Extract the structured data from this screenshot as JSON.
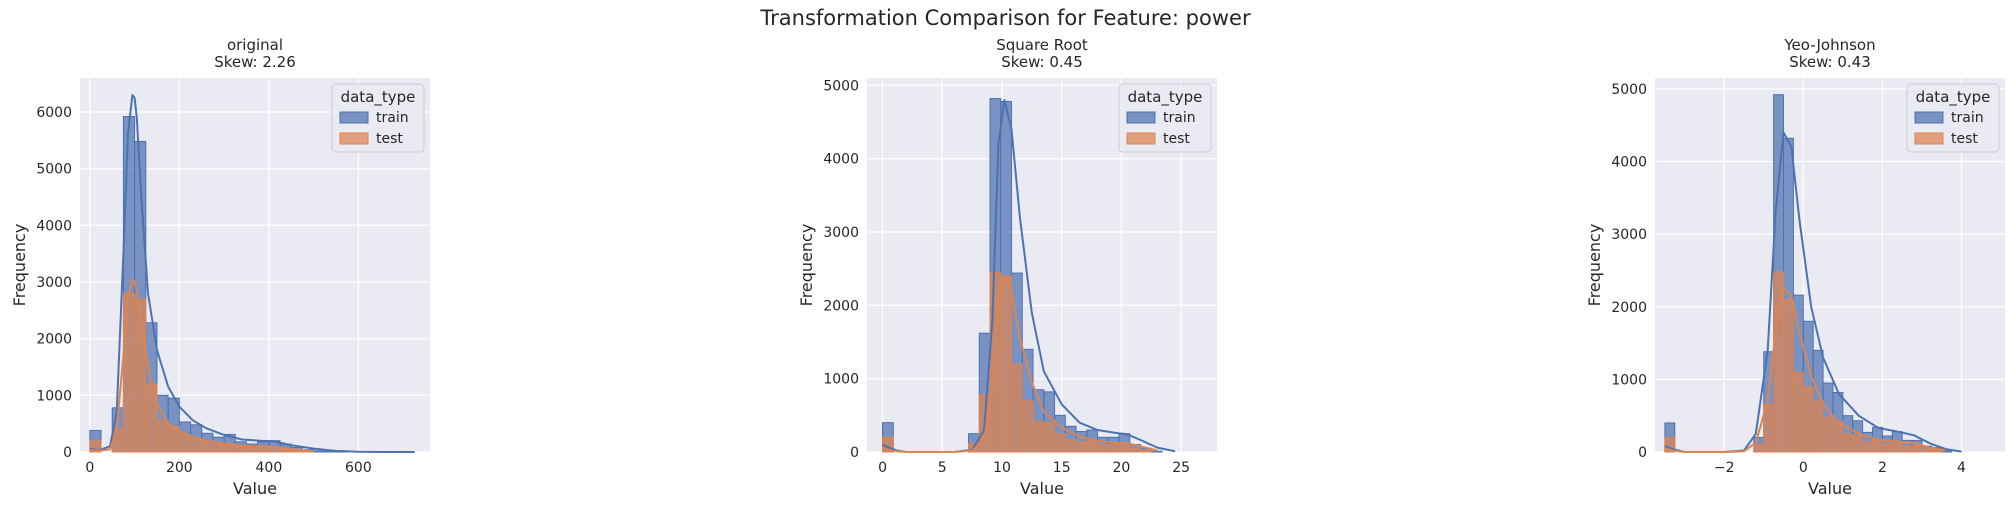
{
  "figure": {
    "suptitle": "Transformation Comparison for Feature: power",
    "legend_title": "data_type",
    "colors": {
      "train": "#4c72b0",
      "test": "#dd8452",
      "background": "#eaeaf2",
      "grid": "#ffffff"
    }
  },
  "chart_data": [
    {
      "type": "histogram",
      "title_line1": "original",
      "title_line2": "Skew: 2.26",
      "xlabel": "Value",
      "ylabel": "Frequency",
      "xlim": [
        -22,
        760
      ],
      "ylim": [
        0,
        6600
      ],
      "xticks": [
        0,
        200,
        400,
        600
      ],
      "yticks": [
        0,
        1000,
        2000,
        3000,
        4000,
        5000,
        6000
      ],
      "grid": true,
      "legend_position": "top-right",
      "series": [
        {
          "name": "train",
          "bin_edges": [
            0,
            25,
            50,
            75,
            100,
            125,
            150,
            175,
            200,
            225,
            250,
            275,
            300,
            325,
            350,
            375,
            400,
            425,
            450,
            475,
            500,
            525,
            550,
            575,
            600,
            625,
            650,
            675,
            700,
            725
          ],
          "counts": [
            380,
            0,
            780,
            5920,
            5480,
            2280,
            1000,
            950,
            530,
            480,
            330,
            260,
            310,
            180,
            140,
            180,
            200,
            140,
            80,
            40,
            20,
            10,
            5,
            0,
            0,
            0,
            0,
            0,
            5
          ],
          "kde_x": [
            0,
            20,
            45,
            60,
            75,
            85,
            95,
            100,
            105,
            115,
            130,
            150,
            175,
            200,
            230,
            260,
            300,
            340,
            380,
            410,
            450,
            500,
            550,
            600,
            650,
            725
          ],
          "kde_y": [
            60,
            30,
            100,
            700,
            3500,
            5600,
            6300,
            6250,
            5900,
            4500,
            2800,
            1800,
            1150,
            800,
            560,
            420,
            300,
            220,
            200,
            190,
            120,
            60,
            20,
            5,
            0,
            0
          ]
        },
        {
          "name": "test",
          "bin_edges": [
            0,
            25,
            50,
            75,
            100,
            125,
            150,
            175,
            200,
            225,
            250,
            275,
            300,
            325,
            350,
            375,
            400,
            425,
            450,
            475,
            500
          ],
          "counts": [
            200,
            0,
            400,
            2800,
            2700,
            1200,
            560,
            450,
            300,
            230,
            180,
            130,
            140,
            90,
            70,
            80,
            80,
            50,
            30,
            15
          ],
          "kde_x": [
            0,
            20,
            45,
            60,
            75,
            85,
            95,
            100,
            108,
            120,
            135,
            150,
            175,
            200,
            230,
            260,
            300,
            340,
            380,
            410,
            450,
            500
          ],
          "kde_y": [
            40,
            20,
            50,
            400,
            1700,
            2700,
            3050,
            3000,
            2700,
            2000,
            1300,
            850,
            500,
            360,
            270,
            200,
            150,
            110,
            100,
            90,
            50,
            10
          ]
        }
      ]
    },
    {
      "type": "histogram",
      "title_line1": "Square Root",
      "title_line2": "Skew: 0.45",
      "xlabel": "Value",
      "ylabel": "Frequency",
      "xlim": [
        -1.3,
        28
      ],
      "ylim": [
        0,
        5100
      ],
      "xticks": [
        0,
        5,
        10,
        15,
        20,
        25
      ],
      "yticks": [
        0,
        1000,
        2000,
        3000,
        4000,
        5000
      ],
      "grid": true,
      "legend_position": "top-right",
      "series": [
        {
          "name": "train",
          "bin_edges": [
            0,
            0.9,
            1.8,
            2.7,
            3.6,
            4.5,
            5.4,
            6.3,
            7.2,
            8.1,
            9.0,
            9.9,
            10.8,
            11.7,
            12.6,
            13.5,
            14.4,
            15.3,
            16.2,
            17.1,
            18.0,
            18.9,
            19.8,
            20.7,
            21.6,
            22.5,
            23.4
          ],
          "counts": [
            400,
            0,
            0,
            0,
            0,
            0,
            0,
            0,
            250,
            1620,
            4820,
            4780,
            2440,
            1400,
            850,
            820,
            500,
            350,
            280,
            300,
            200,
            200,
            250,
            100,
            50,
            10
          ],
          "kde_x": [
            0,
            0.5,
            1.2,
            2,
            4,
            6,
            7.5,
            8.5,
            9.2,
            9.7,
            10.2,
            10.8,
            11.5,
            12.5,
            13.5,
            15,
            16.5,
            18,
            19.5,
            20.5,
            21.5,
            23,
            24.5
          ],
          "kde_y": [
            100,
            60,
            20,
            0,
            0,
            0,
            30,
            300,
            1800,
            4200,
            4800,
            4400,
            3200,
            1900,
            1100,
            650,
            400,
            300,
            260,
            240,
            170,
            60,
            10
          ]
        },
        {
          "name": "test",
          "bin_edges": [
            0,
            0.9,
            1.8,
            2.7,
            3.6,
            4.5,
            5.4,
            6.3,
            7.2,
            8.1,
            9.0,
            9.9,
            10.8,
            11.7,
            12.6,
            13.5,
            14.4,
            15.3,
            16.2,
            17.1,
            18.0,
            18.9,
            19.8,
            20.7,
            21.6,
            22.5
          ],
          "counts": [
            200,
            0,
            0,
            0,
            0,
            0,
            0,
            0,
            120,
            780,
            2450,
            2400,
            1200,
            700,
            420,
            400,
            250,
            170,
            140,
            150,
            100,
            100,
            110,
            50,
            20
          ],
          "kde_x": [
            0,
            0.5,
            1.2,
            2,
            4,
            6,
            7.5,
            8.5,
            9.2,
            9.7,
            10.2,
            10.8,
            11.5,
            12.5,
            13.5,
            15,
            16.5,
            18,
            19.5,
            20.5,
            21.5,
            23
          ],
          "kde_y": [
            60,
            30,
            10,
            0,
            0,
            0,
            20,
            150,
            900,
            2100,
            2380,
            2200,
            1550,
            950,
            550,
            330,
            210,
            150,
            130,
            120,
            80,
            20
          ]
        }
      ]
    },
    {
      "type": "histogram",
      "title_line1": "Yeo-Johnson",
      "title_line2": "Skew: 0.43",
      "xlabel": "Value",
      "ylabel": "Frequency",
      "xlim": [
        -3.75,
        5.1
      ],
      "ylim": [
        0,
        5150
      ],
      "xticks": [
        -2,
        0,
        2,
        4
      ],
      "yticks": [
        0,
        1000,
        2000,
        3000,
        4000,
        5000
      ],
      "grid": true,
      "legend_position": "top-right",
      "series": [
        {
          "name": "train",
          "bin_edges": [
            -3.5,
            -3.25,
            -3.0,
            -2.75,
            -2.5,
            -2.25,
            -2.0,
            -1.75,
            -1.5,
            -1.25,
            -1.0,
            -0.75,
            -0.5,
            -0.25,
            0.0,
            0.25,
            0.5,
            0.75,
            1.0,
            1.25,
            1.5,
            1.75,
            2.0,
            2.25,
            2.5,
            2.75,
            3.0,
            3.25,
            3.5,
            3.75
          ],
          "counts": [
            400,
            0,
            0,
            0,
            0,
            0,
            0,
            0,
            0,
            200,
            1380,
            4920,
            4320,
            2160,
            1800,
            1400,
            950,
            820,
            500,
            430,
            270,
            340,
            220,
            280,
            160,
            160,
            80,
            60,
            20
          ],
          "kde_x": [
            -3.5,
            -3.3,
            -3.0,
            -2.5,
            -2.0,
            -1.5,
            -1.2,
            -0.9,
            -0.7,
            -0.5,
            -0.3,
            -0.1,
            0.2,
            0.5,
            0.9,
            1.4,
            1.9,
            2.4,
            2.8,
            3.2,
            3.6,
            4.0
          ],
          "kde_y": [
            80,
            40,
            0,
            0,
            0,
            20,
            250,
            1400,
            3300,
            4400,
            4200,
            3200,
            2000,
            1300,
            800,
            500,
            330,
            280,
            230,
            120,
            40,
            5
          ]
        },
        {
          "name": "test",
          "bin_edges": [
            -3.5,
            -3.25,
            -3.0,
            -2.75,
            -2.5,
            -2.25,
            -2.0,
            -1.75,
            -1.5,
            -1.25,
            -1.0,
            -0.75,
            -0.5,
            -0.25,
            0.0,
            0.25,
            0.5,
            0.75,
            1.0,
            1.25,
            1.5,
            1.75,
            2.0,
            2.25,
            2.5,
            2.75,
            3.0,
            3.25,
            3.5
          ],
          "counts": [
            200,
            0,
            0,
            0,
            0,
            0,
            0,
            0,
            0,
            100,
            650,
            2480,
            2100,
            1100,
            900,
            700,
            480,
            420,
            250,
            220,
            140,
            170,
            110,
            140,
            80,
            80,
            40,
            30
          ],
          "kde_x": [
            -3.5,
            -3.3,
            -3.0,
            -2.5,
            -2.0,
            -1.5,
            -1.2,
            -0.9,
            -0.7,
            -0.5,
            -0.3,
            -0.1,
            0.2,
            0.5,
            0.9,
            1.4,
            1.9,
            2.4,
            2.8,
            3.2,
            3.6
          ],
          "kde_y": [
            50,
            20,
            0,
            0,
            0,
            10,
            130,
            700,
            1650,
            2250,
            2150,
            1650,
            1050,
            650,
            400,
            250,
            170,
            140,
            120,
            60,
            20
          ]
        }
      ]
    }
  ]
}
